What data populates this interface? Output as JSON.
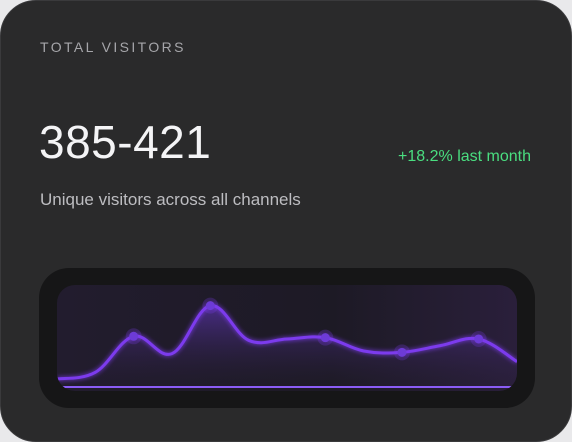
{
  "card": {
    "title": "TOTAL VISITORS",
    "value": "385-421",
    "change": "+18.2% last month",
    "description": "Unique visitors across all channels"
  },
  "colors": {
    "background": "#2a2a2b",
    "positive": "#4ade80",
    "accent": "#7c3aed"
  },
  "chart_data": {
    "type": "area",
    "x": [
      0,
      1,
      2,
      3,
      4,
      5,
      6,
      7,
      8,
      9,
      10,
      11,
      12
    ],
    "values": [
      3,
      8,
      35,
      22,
      58,
      32,
      33,
      34,
      24,
      23,
      28,
      33,
      16
    ],
    "highlighted_indices": [
      2,
      4,
      7,
      9,
      11
    ],
    "ylim": [
      0,
      100
    ],
    "grid": false
  }
}
